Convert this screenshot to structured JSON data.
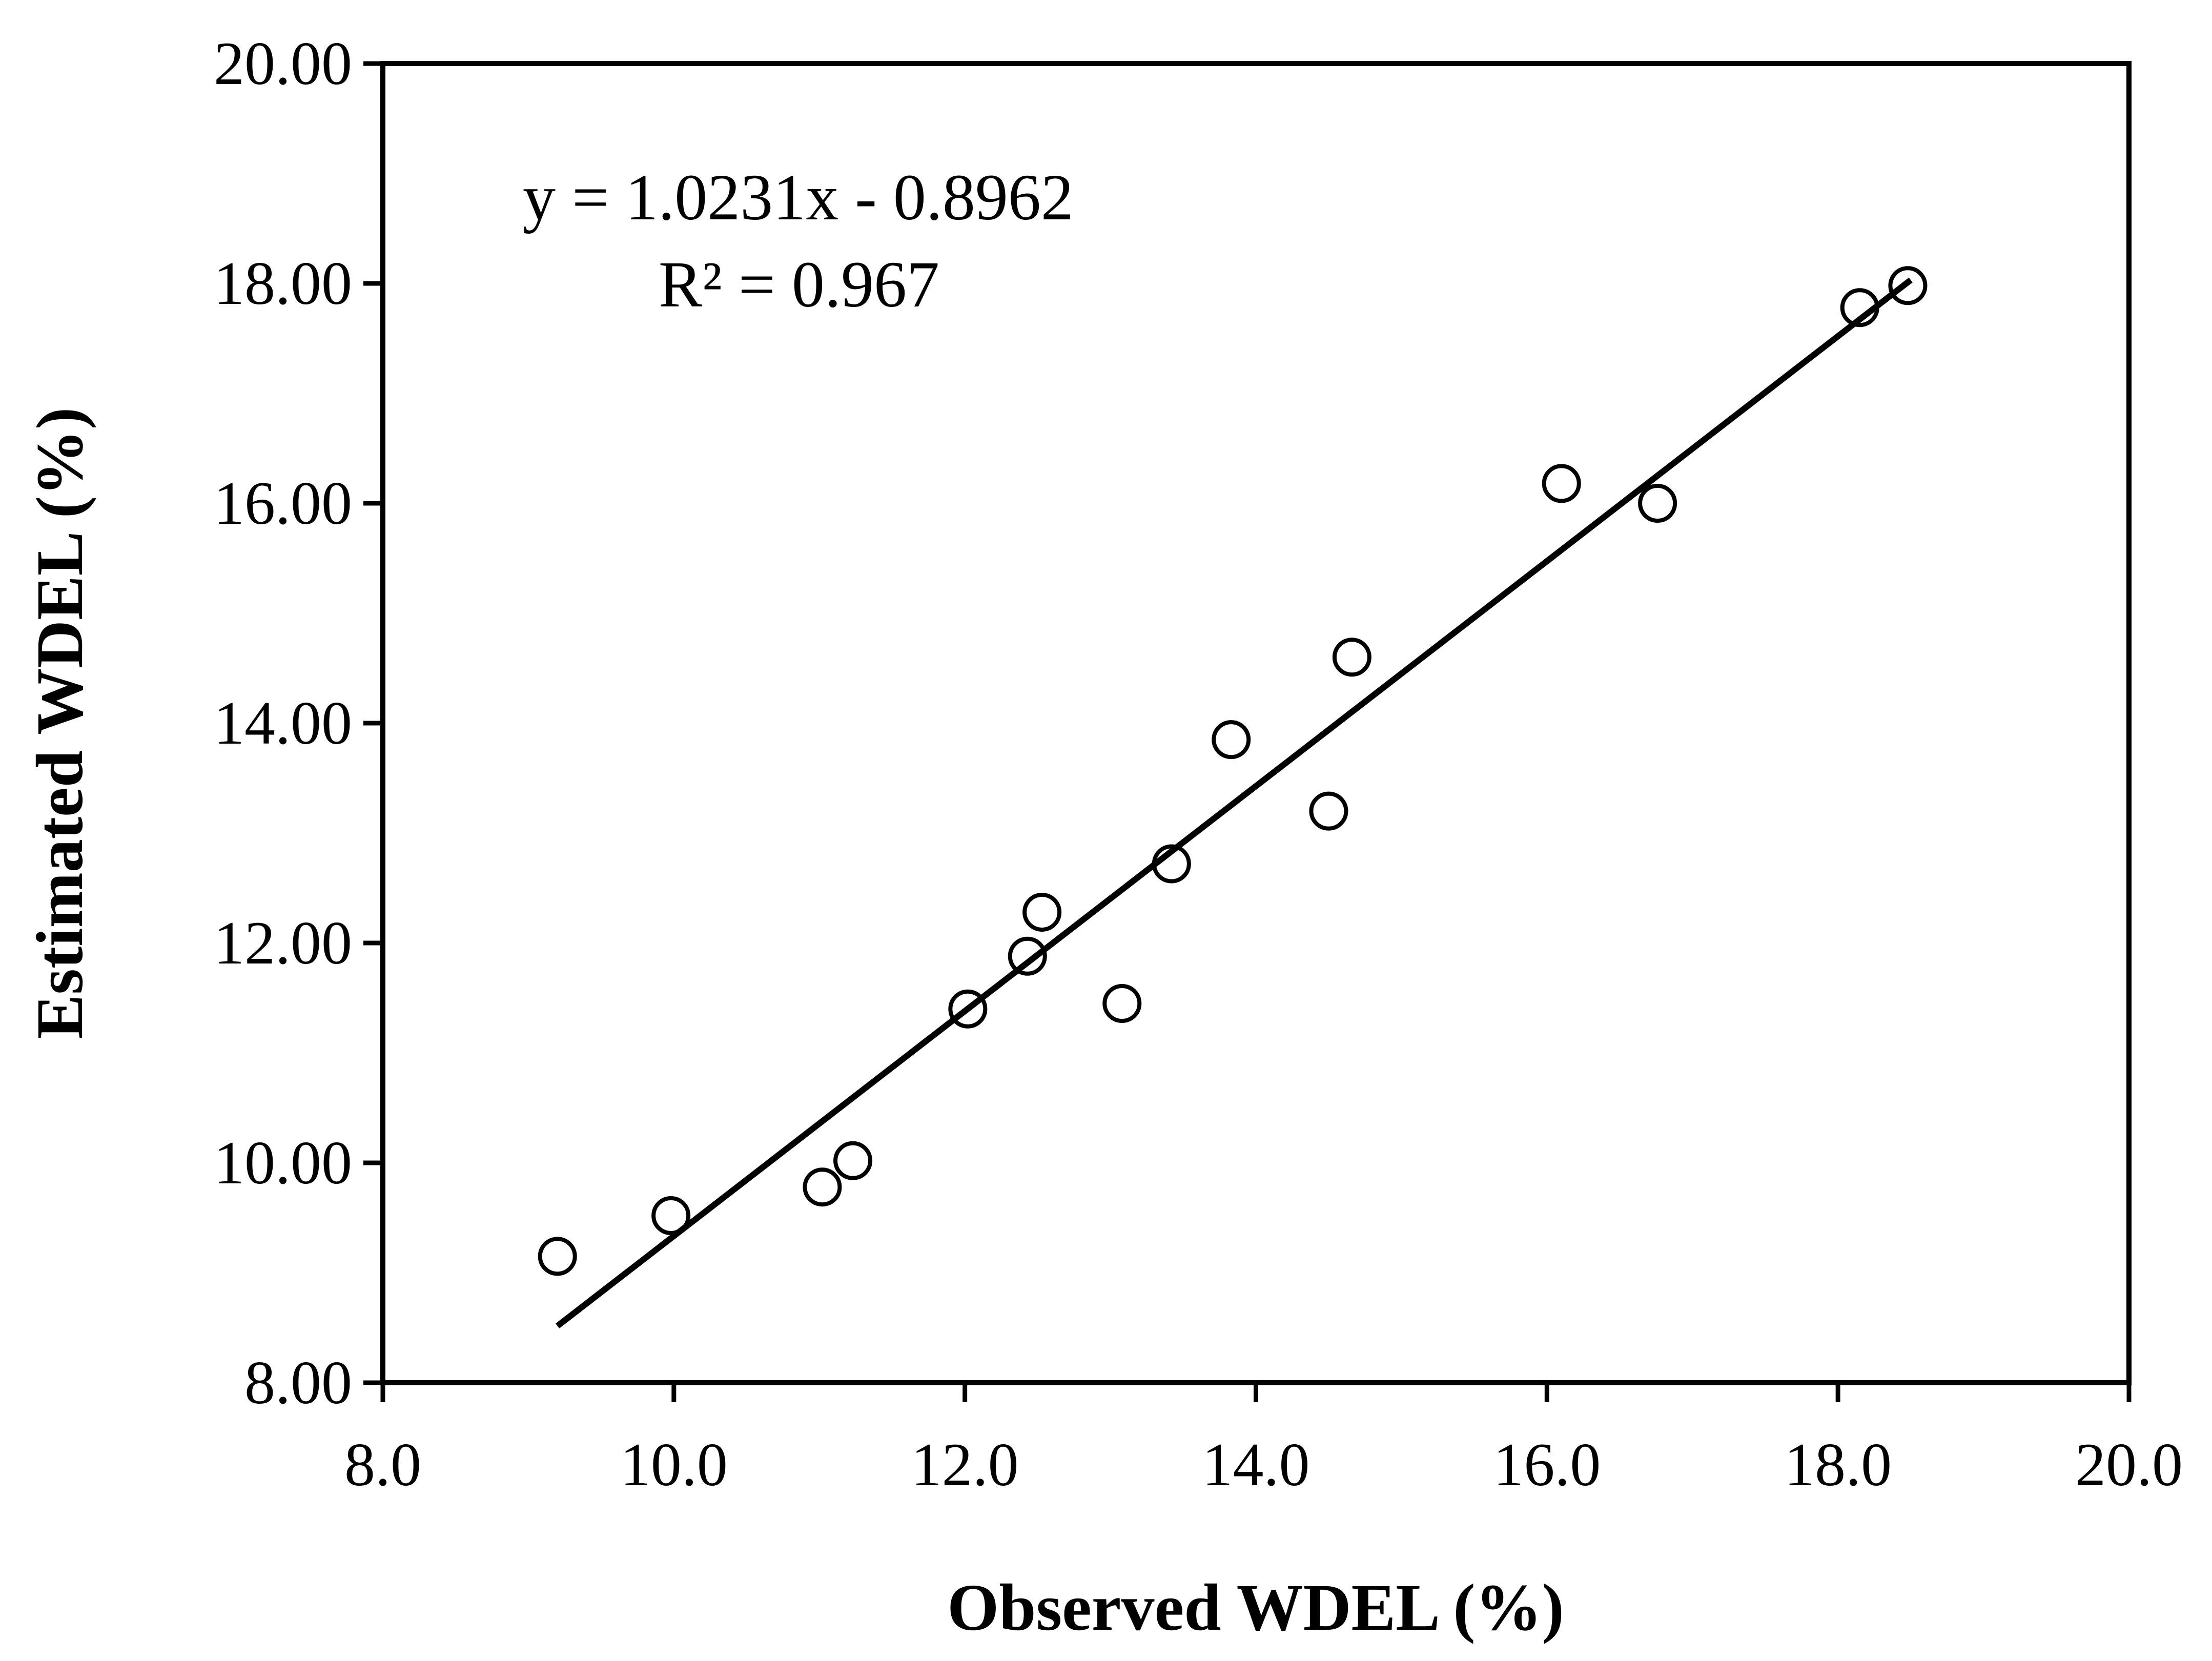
{
  "chart_data": {
    "type": "scatter",
    "xlabel": "Observed WDEL (%)",
    "ylabel": "Estimated WDEL (%)",
    "xlim": [
      8.0,
      20.0
    ],
    "ylim": [
      8.0,
      20.0
    ],
    "x_ticks": [
      "8.0",
      "10.0",
      "12.0",
      "14.0",
      "16.0",
      "18.0",
      "20.0"
    ],
    "y_ticks": [
      "8.00",
      "10.00",
      "12.00",
      "14.00",
      "16.00",
      "18.00",
      "20.00"
    ],
    "grid": false,
    "legend": "none",
    "marker": "open-circle",
    "series": [
      {
        "points": [
          {
            "x": 9.2,
            "y": 9.15
          },
          {
            "x": 9.98,
            "y": 9.52
          },
          {
            "x": 11.02,
            "y": 9.78
          },
          {
            "x": 11.23,
            "y": 10.02
          },
          {
            "x": 12.02,
            "y": 11.4
          },
          {
            "x": 12.43,
            "y": 11.88
          },
          {
            "x": 12.53,
            "y": 12.28
          },
          {
            "x": 13.08,
            "y": 11.45
          },
          {
            "x": 13.42,
            "y": 12.72
          },
          {
            "x": 13.83,
            "y": 13.85
          },
          {
            "x": 14.5,
            "y": 13.2
          },
          {
            "x": 14.66,
            "y": 14.6
          },
          {
            "x": 16.1,
            "y": 16.18
          },
          {
            "x": 16.76,
            "y": 16.0
          },
          {
            "x": 18.15,
            "y": 17.78
          },
          {
            "x": 18.48,
            "y": 17.98
          }
        ]
      }
    ],
    "trendline": {
      "slope": 1.0231,
      "intercept": -0.8962,
      "x_range": [
        9.2,
        18.5
      ]
    },
    "annotations": {
      "equation": "y = 1.0231x - 0.8962",
      "r_squared": "R² = 0.967"
    }
  }
}
